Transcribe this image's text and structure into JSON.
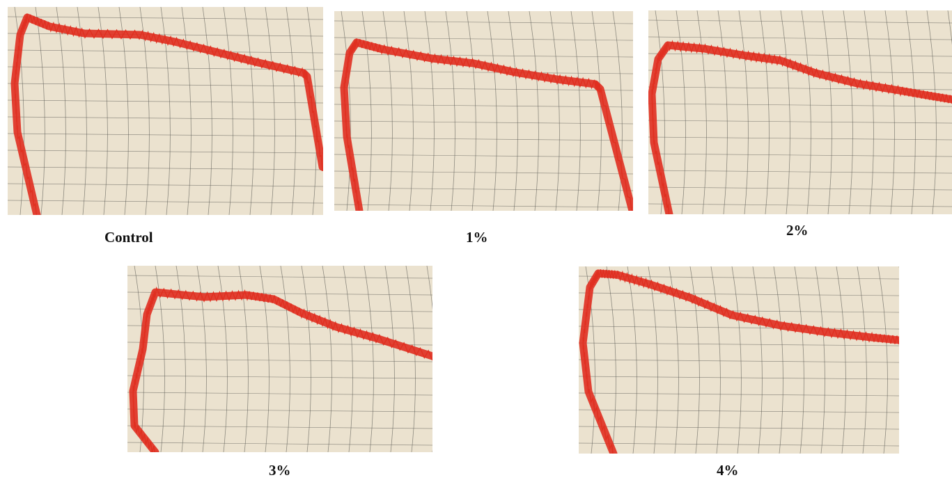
{
  "colors": {
    "paper": "#ebe2cf",
    "grid": "#5b5a55",
    "trace": "#e02f20"
  },
  "panels": [
    {
      "id": "control",
      "caption": "Control"
    },
    {
      "id": "1",
      "caption": "1%"
    },
    {
      "id": "2",
      "caption": "2%"
    },
    {
      "id": "3",
      "caption": "3%"
    },
    {
      "id": "4",
      "caption": "4%"
    }
  ]
}
